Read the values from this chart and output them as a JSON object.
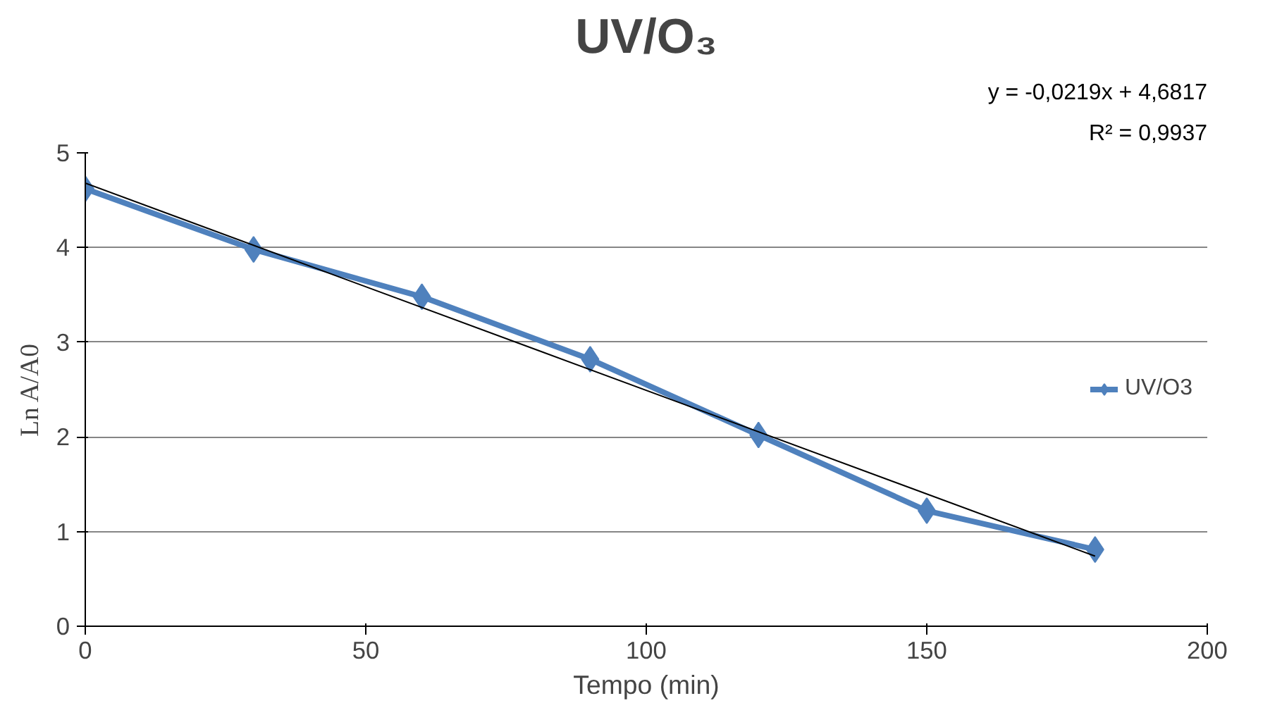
{
  "chart_data": {
    "type": "line",
    "title": "UV/O₃",
    "xlabel": "Tempo (min)",
    "ylabel": "Ln A/A0",
    "x": [
      0,
      30,
      60,
      90,
      120,
      150,
      180
    ],
    "series": [
      {
        "name": "UV/O3",
        "color": "#4f81bd",
        "values": [
          4.62,
          3.98,
          3.48,
          2.82,
          2.02,
          1.22,
          0.81
        ]
      },
      {
        "type": "line",
        "color": "#000000",
        "x": [
          0,
          180
        ],
        "values": [
          4.68,
          0.74
        ],
        "marker": "none"
      }
    ],
    "xlim": [
      0,
      200
    ],
    "xticks": [
      0,
      50,
      100,
      150,
      200
    ],
    "ylim": [
      0,
      5
    ],
    "yticks": [
      0,
      1,
      2,
      3,
      4,
      5
    ],
    "grid": "y",
    "legend": "right",
    "line_style": "solid",
    "marker": "diamond",
    "annotations": [
      "y = -0,0219x + 4,6817",
      "R² = 0,9937"
    ]
  }
}
